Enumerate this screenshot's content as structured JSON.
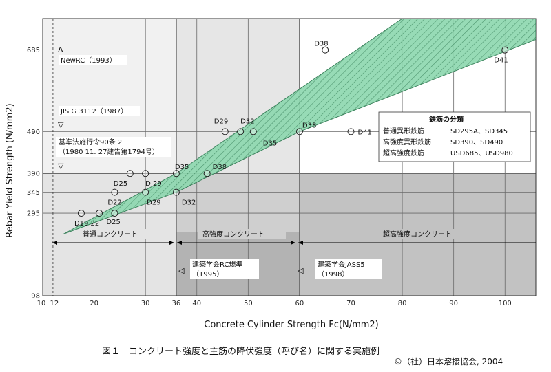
{
  "chart_data": {
    "type": "scatter",
    "caption": "図１　コンクリート強度と主筋の降伏強度（呼び名）に関する実施例",
    "copyright": "©（社）日本溶接協会, 2004",
    "xlabel": "Concrete  Cylinder Strength Fc(N/mm2)",
    "ylabel": "Rebar Yield Strength (N/mm2)",
    "xlim": [
      10,
      106
    ],
    "ylim": [
      98,
      760
    ],
    "x_ticks": [
      {
        "v": 10,
        "label": "10"
      },
      {
        "v": 12,
        "label": "12"
      },
      {
        "v": 20,
        "label": "20"
      },
      {
        "v": 30,
        "label": "30"
      },
      {
        "v": 36,
        "label": "36"
      },
      {
        "v": 40,
        "label": "40"
      },
      {
        "v": 50,
        "label": "50"
      },
      {
        "v": 60,
        "label": "60"
      },
      {
        "v": 70,
        "label": "70"
      },
      {
        "v": 80,
        "label": "80"
      },
      {
        "v": 90,
        "label": "90"
      },
      {
        "v": 100,
        "label": "100"
      }
    ],
    "y_ticks": [
      {
        "v": 98,
        "label": "98"
      },
      {
        "v": 295,
        "label": "295"
      },
      {
        "v": 345,
        "label": "345"
      },
      {
        "v": 390,
        "label": "390"
      },
      {
        "v": 490,
        "label": "490"
      },
      {
        "v": 685,
        "label": "685"
      }
    ],
    "regions": [
      {
        "name": "普通コンクリート",
        "x": [
          10,
          36
        ],
        "y_top": 390
      },
      {
        "name": "高強度コンクリート",
        "x": [
          36,
          60
        ],
        "y_top": 390
      },
      {
        "name": "超高強度コンクリート",
        "x": [
          60,
          106
        ],
        "y_top": 390
      }
    ],
    "band": {
      "polygon": [
        [
          14,
          245
        ],
        [
          36,
          345
        ],
        [
          60,
          490
        ],
        [
          106,
          710
        ],
        [
          106,
          760
        ],
        [
          80,
          760
        ],
        [
          36,
          390
        ]
      ]
    },
    "points": [
      {
        "x": 17.5,
        "y": 295,
        "label": "D19 22"
      },
      {
        "x": 21,
        "y": 295,
        "label": ""
      },
      {
        "x": 24,
        "y": 295,
        "label": "D25"
      },
      {
        "x": 24,
        "y": 345,
        "label": "D22"
      },
      {
        "x": 27,
        "y": 390,
        "label": "D25"
      },
      {
        "x": 30,
        "y": 390,
        "label": "D 29"
      },
      {
        "x": 30,
        "y": 345,
        "label": "D29"
      },
      {
        "x": 36,
        "y": 390,
        "label": "D35"
      },
      {
        "x": 36,
        "y": 345,
        "label": "D32"
      },
      {
        "x": 42,
        "y": 390,
        "label": "D38"
      },
      {
        "x": 45.5,
        "y": 490,
        "label": "D29"
      },
      {
        "x": 48.5,
        "y": 490,
        "label": "D32"
      },
      {
        "x": 51,
        "y": 490,
        "label": "D35"
      },
      {
        "x": 60,
        "y": 490,
        "label": "D38"
      },
      {
        "x": 70,
        "y": 490,
        "label": "D41"
      },
      {
        "x": 65,
        "y": 685,
        "label": "D38"
      },
      {
        "x": 100,
        "y": 685,
        "label": "D41"
      }
    ],
    "annotations": [
      {
        "name": "newrc",
        "text": "NewRC（1993）"
      },
      {
        "name": "jis",
        "text": "JIS  G 3112（1987）"
      },
      {
        "name": "kijun1",
        "text": "基準法施行令90条 2"
      },
      {
        "name": "kijun2",
        "text": "（1980  11. 27建告第1794号）"
      },
      {
        "name": "aij-rc1",
        "text": "建築学会RC規準"
      },
      {
        "name": "aij-rc2",
        "text": "（1995）"
      },
      {
        "name": "jass5-1",
        "text": "建築学会JASS5"
      },
      {
        "name": "jass5-2",
        "text": "（1998）"
      }
    ],
    "legend": {
      "title": "鉄筋の分類",
      "rows": [
        {
          "name": "普通異形鉄筋",
          "grades": "SD295A、SD345"
        },
        {
          "name": "高強度異形鉄筋",
          "grades": "SD390、SD490"
        },
        {
          "name": "超高強度鉄筋",
          "grades": "USD685、USD980"
        }
      ]
    },
    "colors": {
      "band_fill": "#8fd8b0",
      "band_stroke": "#2f7a52",
      "hatch": "#3d8c62",
      "region_normal": "#e4e4e4",
      "region_high": "#cfcfcf",
      "region_ultra": "#c2c2c2",
      "upper_normal": "#f1f1f1",
      "upper_high": "#e6e6e6",
      "upper_ultra": "#ffffff",
      "band_dark_lower": "#9c9c9c",
      "grid": "#6a6a6a"
    }
  }
}
